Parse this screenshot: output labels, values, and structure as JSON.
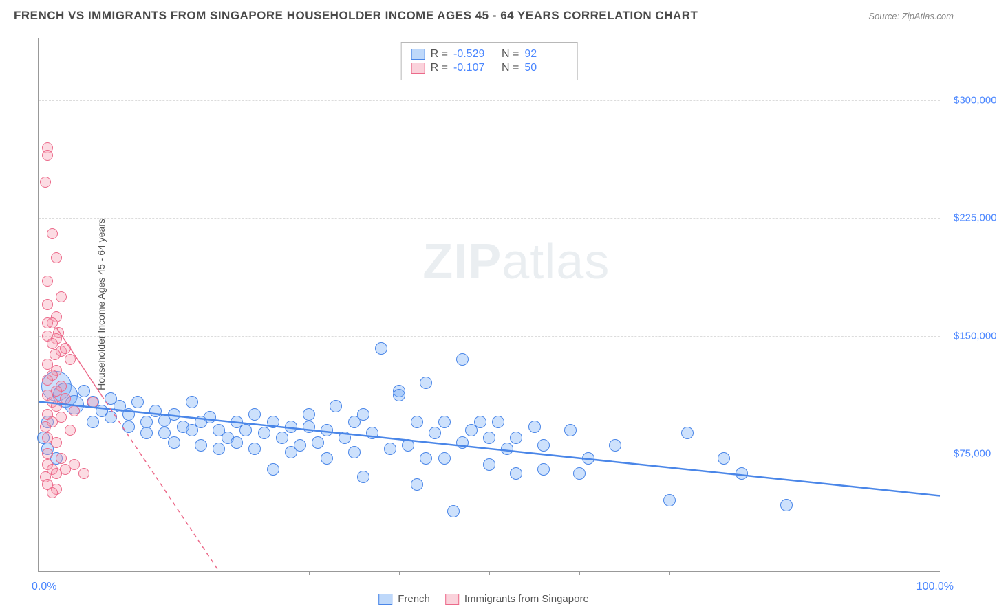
{
  "header": {
    "title": "FRENCH VS IMMIGRANTS FROM SINGAPORE HOUSEHOLDER INCOME AGES 45 - 64 YEARS CORRELATION CHART",
    "source_label": "Source:",
    "source_value": "ZipAtlas.com"
  },
  "watermark": {
    "bold": "ZIP",
    "rest": "atlas"
  },
  "chart": {
    "type": "scatter",
    "x_axis": {
      "min": 0,
      "max": 100,
      "min_label": "0.0%",
      "max_label": "100.0%",
      "tick_positions": [
        10,
        20,
        30,
        40,
        50,
        60,
        70,
        80,
        90
      ]
    },
    "y_axis": {
      "min": 0,
      "max": 340000,
      "title": "Householder Income Ages 45 - 64 years",
      "gridlines": [
        {
          "value": 75000,
          "label": "$75,000"
        },
        {
          "value": 150000,
          "label": "$150,000"
        },
        {
          "value": 225000,
          "label": "$225,000"
        },
        {
          "value": 300000,
          "label": "$300,000"
        }
      ]
    },
    "series": [
      {
        "id": "french",
        "name": "French",
        "color": "#6fa8f5",
        "fill": "rgba(111,168,245,0.35)",
        "stroke": "#4a86e8",
        "r_value": "-0.529",
        "n_value": "92",
        "marker_radius": 9,
        "trend": {
          "x1": 0,
          "y1": 108000,
          "x2": 100,
          "y2": 48000,
          "width": 2.5,
          "dash": ""
        },
        "points": [
          {
            "x": 2,
            "y": 118000,
            "r": 22
          },
          {
            "x": 3,
            "y": 112000,
            "r": 18
          },
          {
            "x": 4,
            "y": 106000,
            "r": 14
          },
          {
            "x": 1,
            "y": 95000
          },
          {
            "x": 1,
            "y": 78000
          },
          {
            "x": 2,
            "y": 72000
          },
          {
            "x": 0.5,
            "y": 85000
          },
          {
            "x": 5,
            "y": 115000
          },
          {
            "x": 6,
            "y": 108000
          },
          {
            "x": 6,
            "y": 95000
          },
          {
            "x": 7,
            "y": 102000
          },
          {
            "x": 8,
            "y": 110000
          },
          {
            "x": 8,
            "y": 98000
          },
          {
            "x": 9,
            "y": 105000
          },
          {
            "x": 10,
            "y": 100000
          },
          {
            "x": 10,
            "y": 92000
          },
          {
            "x": 11,
            "y": 108000
          },
          {
            "x": 12,
            "y": 95000
          },
          {
            "x": 12,
            "y": 88000
          },
          {
            "x": 13,
            "y": 102000
          },
          {
            "x": 14,
            "y": 96000
          },
          {
            "x": 14,
            "y": 88000
          },
          {
            "x": 15,
            "y": 100000
          },
          {
            "x": 15,
            "y": 82000
          },
          {
            "x": 16,
            "y": 92000
          },
          {
            "x": 17,
            "y": 108000
          },
          {
            "x": 17,
            "y": 90000
          },
          {
            "x": 18,
            "y": 95000
          },
          {
            "x": 18,
            "y": 80000
          },
          {
            "x": 19,
            "y": 98000
          },
          {
            "x": 20,
            "y": 90000
          },
          {
            "x": 20,
            "y": 78000
          },
          {
            "x": 21,
            "y": 85000
          },
          {
            "x": 22,
            "y": 95000
          },
          {
            "x": 22,
            "y": 82000
          },
          {
            "x": 23,
            "y": 90000
          },
          {
            "x": 24,
            "y": 100000
          },
          {
            "x": 24,
            "y": 78000
          },
          {
            "x": 25,
            "y": 88000
          },
          {
            "x": 26,
            "y": 65000
          },
          {
            "x": 26,
            "y": 95000
          },
          {
            "x": 27,
            "y": 85000
          },
          {
            "x": 28,
            "y": 76000
          },
          {
            "x": 28,
            "y": 92000
          },
          {
            "x": 29,
            "y": 80000
          },
          {
            "x": 30,
            "y": 92000
          },
          {
            "x": 30,
            "y": 100000
          },
          {
            "x": 31,
            "y": 82000
          },
          {
            "x": 32,
            "y": 72000
          },
          {
            "x": 32,
            "y": 90000
          },
          {
            "x": 33,
            "y": 105000
          },
          {
            "x": 34,
            "y": 85000
          },
          {
            "x": 35,
            "y": 95000
          },
          {
            "x": 35,
            "y": 76000
          },
          {
            "x": 36,
            "y": 100000
          },
          {
            "x": 36,
            "y": 60000
          },
          {
            "x": 37,
            "y": 88000
          },
          {
            "x": 38,
            "y": 142000
          },
          {
            "x": 39,
            "y": 78000
          },
          {
            "x": 40,
            "y": 115000
          },
          {
            "x": 40,
            "y": 112000
          },
          {
            "x": 41,
            "y": 80000
          },
          {
            "x": 42,
            "y": 95000
          },
          {
            "x": 42,
            "y": 55000
          },
          {
            "x": 43,
            "y": 72000
          },
          {
            "x": 43,
            "y": 120000
          },
          {
            "x": 44,
            "y": 88000
          },
          {
            "x": 45,
            "y": 95000
          },
          {
            "x": 45,
            "y": 72000
          },
          {
            "x": 46,
            "y": 38000
          },
          {
            "x": 47,
            "y": 135000
          },
          {
            "x": 47,
            "y": 82000
          },
          {
            "x": 48,
            "y": 90000
          },
          {
            "x": 49,
            "y": 95000
          },
          {
            "x": 50,
            "y": 85000
          },
          {
            "x": 50,
            "y": 68000
          },
          {
            "x": 51,
            "y": 95000
          },
          {
            "x": 52,
            "y": 78000
          },
          {
            "x": 53,
            "y": 62000
          },
          {
            "x": 53,
            "y": 85000
          },
          {
            "x": 55,
            "y": 92000
          },
          {
            "x": 56,
            "y": 65000
          },
          {
            "x": 56,
            "y": 80000
          },
          {
            "x": 59,
            "y": 90000
          },
          {
            "x": 60,
            "y": 62000
          },
          {
            "x": 61,
            "y": 72000
          },
          {
            "x": 64,
            "y": 80000
          },
          {
            "x": 70,
            "y": 45000
          },
          {
            "x": 72,
            "y": 88000
          },
          {
            "x": 76,
            "y": 72000
          },
          {
            "x": 78,
            "y": 62000
          },
          {
            "x": 83,
            "y": 42000
          }
        ]
      },
      {
        "id": "singapore",
        "name": "Immigrants from Singapore",
        "color": "#f59bb0",
        "fill": "rgba(245,155,176,0.35)",
        "stroke": "#ec6a8a",
        "r_value": "-0.107",
        "n_value": "50",
        "marker_radius": 8,
        "trend": {
          "x1": 2,
          "y1": 155000,
          "x2": 20,
          "y2": 0,
          "width": 1.5,
          "dash": "6,5",
          "solid_until_x": 7
        },
        "points": [
          {
            "x": 1,
            "y": 270000
          },
          {
            "x": 1,
            "y": 265000
          },
          {
            "x": 0.8,
            "y": 248000
          },
          {
            "x": 1.5,
            "y": 215000
          },
          {
            "x": 2,
            "y": 200000
          },
          {
            "x": 1,
            "y": 185000
          },
          {
            "x": 2.5,
            "y": 175000
          },
          {
            "x": 1,
            "y": 170000
          },
          {
            "x": 2,
            "y": 162000
          },
          {
            "x": 1.5,
            "y": 158000
          },
          {
            "x": 2.2,
            "y": 152000
          },
          {
            "x": 1,
            "y": 150000
          },
          {
            "x": 2,
            "y": 148000
          },
          {
            "x": 1.5,
            "y": 145000
          },
          {
            "x": 1,
            "y": 158000
          },
          {
            "x": 2.5,
            "y": 140000
          },
          {
            "x": 1.8,
            "y": 138000
          },
          {
            "x": 1,
            "y": 132000
          },
          {
            "x": 2,
            "y": 128000
          },
          {
            "x": 1.5,
            "y": 125000
          },
          {
            "x": 1,
            "y": 122000
          },
          {
            "x": 2.5,
            "y": 118000
          },
          {
            "x": 2,
            "y": 115000
          },
          {
            "x": 1,
            "y": 112000
          },
          {
            "x": 1.5,
            "y": 108000
          },
          {
            "x": 2,
            "y": 105000
          },
          {
            "x": 1,
            "y": 100000
          },
          {
            "x": 2.5,
            "y": 98000
          },
          {
            "x": 1.5,
            "y": 95000
          },
          {
            "x": 3,
            "y": 142000
          },
          {
            "x": 3.5,
            "y": 135000
          },
          {
            "x": 3,
            "y": 110000
          },
          {
            "x": 4,
            "y": 102000
          },
          {
            "x": 0.8,
            "y": 92000
          },
          {
            "x": 1,
            "y": 85000
          },
          {
            "x": 2,
            "y": 82000
          },
          {
            "x": 1,
            "y": 75000
          },
          {
            "x": 2.5,
            "y": 72000
          },
          {
            "x": 1,
            "y": 68000
          },
          {
            "x": 1.5,
            "y": 65000
          },
          {
            "x": 2,
            "y": 62000
          },
          {
            "x": 0.8,
            "y": 60000
          },
          {
            "x": 3,
            "y": 65000
          },
          {
            "x": 4,
            "y": 68000
          },
          {
            "x": 5,
            "y": 62000
          },
          {
            "x": 1,
            "y": 55000
          },
          {
            "x": 2,
            "y": 52000
          },
          {
            "x": 1.5,
            "y": 50000
          },
          {
            "x": 6,
            "y": 108000
          },
          {
            "x": 3.5,
            "y": 90000
          }
        ]
      }
    ]
  },
  "bottom_legend": [
    {
      "label": "French",
      "swatch_fill": "rgba(111,168,245,0.45)",
      "swatch_stroke": "#4a86e8"
    },
    {
      "label": "Immigrants from Singapore",
      "swatch_fill": "rgba(245,155,176,0.45)",
      "swatch_stroke": "#ec6a8a"
    }
  ]
}
